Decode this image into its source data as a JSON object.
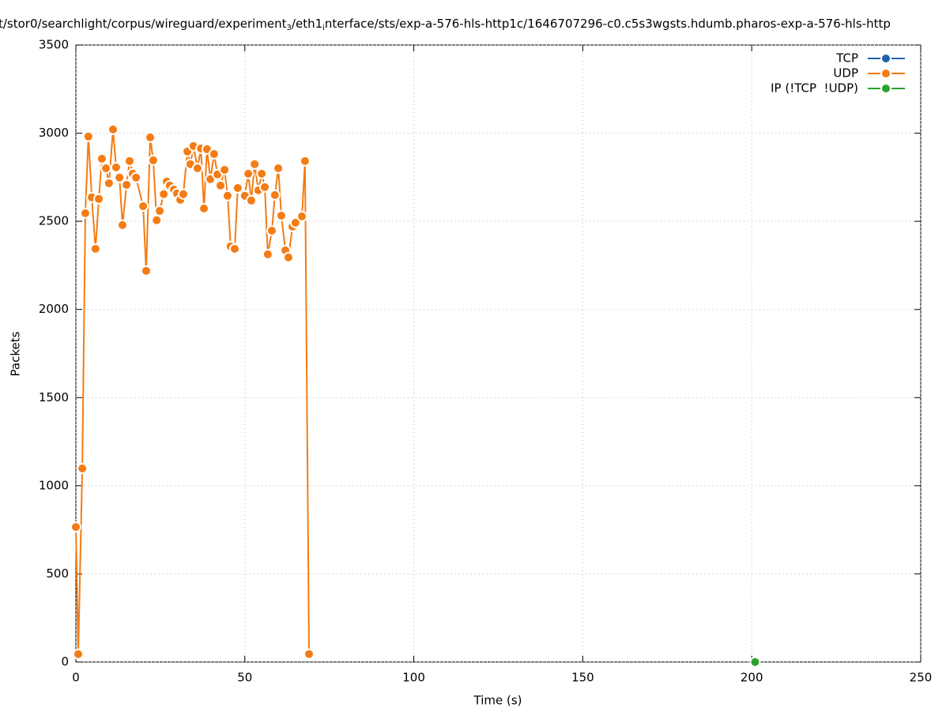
{
  "chart_data": {
    "type": "line",
    "title": [
      "t/stor0/searchlight/corpus/wireguard/experiment",
      "3",
      "/eth1",
      "i",
      "nterface/sts/exp-a-576-hls-http1c/1646707296-c0.c5s3wgsts.hdumb.pharos-exp-a-576-hls-http"
    ],
    "x_label": "Time (s)",
    "y_label": "Packets",
    "xlim": [
      0,
      250
    ],
    "xticks": [
      0,
      50,
      100,
      150,
      200,
      250
    ],
    "ylim": [
      0,
      3500
    ],
    "yticks": [
      0,
      500,
      1000,
      1500,
      2000,
      2500,
      3000,
      3500
    ],
    "grid": true,
    "legend": "top-right",
    "series": [
      {
        "name": "TCP",
        "color": "#1f63b0",
        "x": [],
        "values": []
      },
      {
        "name": "UDP",
        "color": "#f47c14",
        "x": [
          0,
          0.7,
          1.9,
          2.8,
          3.7,
          4.7,
          5.8,
          6.8,
          7.7,
          8.9,
          9.8,
          11,
          11.9,
          12.9,
          13.8,
          15,
          15.9,
          16.8,
          17.8,
          19.9,
          20.8,
          22,
          22.9,
          23.9,
          24.8,
          26,
          26.9,
          27.8,
          29,
          29.9,
          30.9,
          31.8,
          33,
          33.9,
          34.8,
          36,
          37,
          37.9,
          38.8,
          39.8,
          40.9,
          41.9,
          42.8,
          44,
          44.9,
          45.8,
          47,
          47.9,
          50,
          51,
          51.9,
          52.9,
          54,
          55,
          55.9,
          56.8,
          58,
          58.9,
          59.9,
          60.8,
          62,
          62.9,
          64.1,
          65,
          66.9,
          67.8,
          69
        ],
        "values": [
          766,
          45,
          1098,
          2546,
          2981,
          2636,
          2344,
          2627,
          2855,
          2801,
          2716,
          3021,
          2806,
          2748,
          2479,
          2707,
          2842,
          2770,
          2748,
          2586,
          2219,
          2976,
          2846,
          2506,
          2559,
          2654,
          2725,
          2703,
          2680,
          2658,
          2622,
          2654,
          2896,
          2824,
          2927,
          2801,
          2913,
          2573,
          2909,
          2739,
          2882,
          2766,
          2703,
          2792,
          2645,
          2358,
          2344,
          2689,
          2645,
          2770,
          2618,
          2824,
          2676,
          2770,
          2694,
          2313,
          2447,
          2649,
          2801,
          2532,
          2335,
          2295,
          2470,
          2492,
          2528,
          2842,
          45
        ]
      },
      {
        "name": "IP (!TCP  !UDP)",
        "color": "#2ca02c",
        "x": [
          201
        ],
        "values": [
          0
        ]
      }
    ]
  }
}
